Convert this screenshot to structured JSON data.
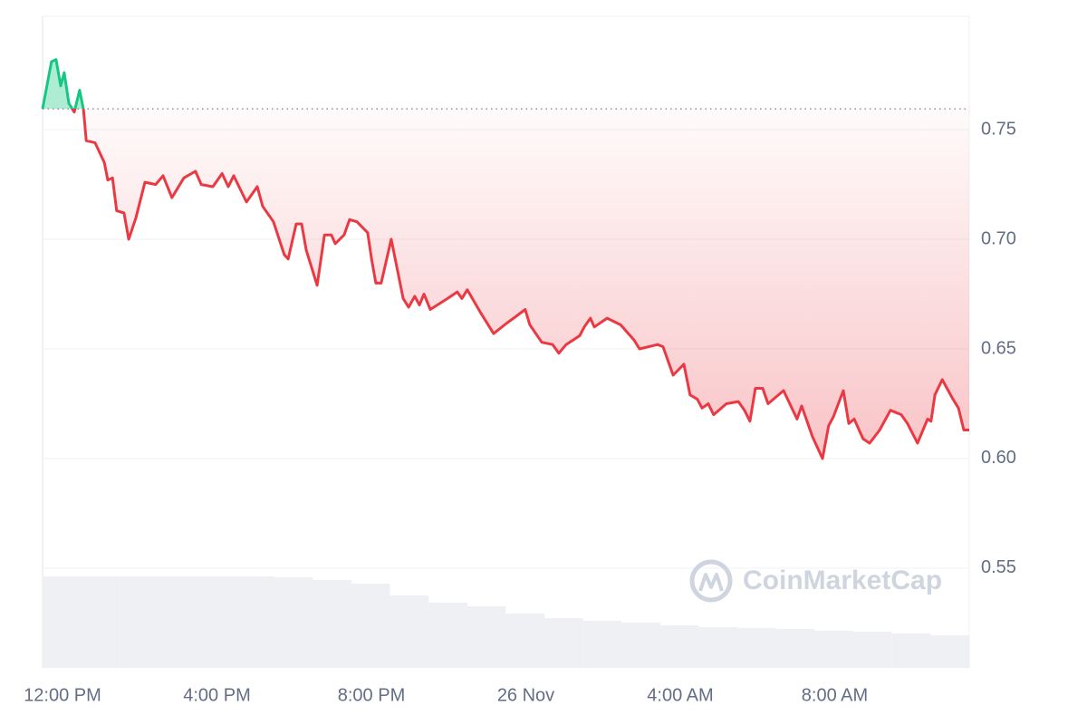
{
  "chart_data": {
    "type": "line",
    "baseline": 0.7595,
    "up_color": "#16c784",
    "down_color": "#ea3943",
    "grid": true,
    "watermark": "CoinMarketCap",
    "xlim": [
      0,
      24
    ],
    "xticks": [
      {
        "value": 0,
        "label": "12:00 PM"
      },
      {
        "value": 4,
        "label": "4:00 PM"
      },
      {
        "value": 8,
        "label": "8:00 PM"
      },
      {
        "value": 12,
        "label": "26 Nov"
      },
      {
        "value": 16,
        "label": "4:00 AM"
      },
      {
        "value": 20,
        "label": "8:00 AM"
      }
    ],
    "ylim": [
      0.5045,
      0.8017
    ],
    "yticks": [
      {
        "value": 0.55,
        "label": "0.55"
      },
      {
        "value": 0.6,
        "label": "0.60"
      },
      {
        "value": 0.65,
        "label": "0.65"
      },
      {
        "value": 0.7,
        "label": "0.70"
      },
      {
        "value": 0.75,
        "label": "0.75"
      }
    ],
    "x": [
      0,
      0.23,
      0.35,
      0.47,
      0.56,
      0.68,
      0.82,
      0.96,
      1.06,
      1.13,
      1.36,
      1.6,
      1.69,
      1.81,
      1.92,
      2.11,
      2.23,
      2.42,
      2.65,
      2.93,
      3.12,
      3.35,
      3.66,
      3.96,
      4.11,
      4.41,
      4.65,
      4.81,
      4.95,
      5.28,
      5.56,
      5.7,
      5.98,
      6.26,
      6.36,
      6.57,
      6.71,
      6.83,
      7.11,
      7.3,
      7.48,
      7.58,
      7.81,
      7.95,
      8.14,
      8.42,
      8.52,
      8.63,
      8.77,
      9.03,
      9.34,
      9.48,
      9.64,
      9.76,
      9.88,
      10.04,
      10.49,
      10.74,
      10.86,
      11.0,
      11.33,
      11.68,
      12.04,
      12.2,
      12.5,
      12.62,
      12.93,
      13.21,
      13.37,
      13.56,
      13.91,
      14.03,
      14.19,
      14.29,
      14.62,
      14.97,
      15.32,
      15.46,
      15.93,
      16.07,
      16.33,
      16.61,
      16.77,
      16.96,
      17.08,
      17.24,
      17.38,
      17.71,
      18.02,
      18.18,
      18.32,
      18.46,
      18.65,
      18.79,
      19.19,
      19.54,
      19.66,
      19.94,
      20.2,
      20.36,
      20.48,
      20.74,
      20.88,
      21.02,
      21.25,
      21.42,
      21.68,
      21.96,
      22.24,
      22.4,
      22.66,
      22.92,
      23.01,
      23.11,
      23.3,
      23.58,
      23.72,
      23.86,
      24.0
    ],
    "values": [
      0.7595,
      0.781,
      0.782,
      0.77,
      0.776,
      0.762,
      0.758,
      0.768,
      0.759,
      0.745,
      0.744,
      0.735,
      0.727,
      0.728,
      0.713,
      0.712,
      0.7,
      0.71,
      0.726,
      0.725,
      0.729,
      0.719,
      0.728,
      0.731,
      0.725,
      0.724,
      0.73,
      0.724,
      0.729,
      0.717,
      0.724,
      0.715,
      0.708,
      0.693,
      0.691,
      0.707,
      0.707,
      0.695,
      0.679,
      0.702,
      0.702,
      0.698,
      0.702,
      0.709,
      0.708,
      0.703,
      0.691,
      0.68,
      0.68,
      0.7,
      0.673,
      0.669,
      0.674,
      0.67,
      0.675,
      0.668,
      0.673,
      0.676,
      0.673,
      0.677,
      0.667,
      0.657,
      0.662,
      0.664,
      0.668,
      0.661,
      0.653,
      0.652,
      0.648,
      0.652,
      0.656,
      0.66,
      0.664,
      0.66,
      0.664,
      0.661,
      0.654,
      0.65,
      0.652,
      0.651,
      0.638,
      0.643,
      0.629,
      0.627,
      0.623,
      0.625,
      0.62,
      0.625,
      0.626,
      0.622,
      0.617,
      0.632,
      0.632,
      0.625,
      0.631,
      0.618,
      0.624,
      0.61,
      0.6,
      0.615,
      0.619,
      0.631,
      0.616,
      0.618,
      0.609,
      0.607,
      0.613,
      0.622,
      0.62,
      0.616,
      0.607,
      0.618,
      0.617,
      0.629,
      0.636,
      0.627,
      0.623,
      0.613,
      0.613
    ],
    "volume": {
      "x": [
        0,
        1,
        2,
        3,
        4,
        5,
        6,
        7,
        8,
        9,
        10,
        11,
        12,
        13,
        14,
        15,
        16,
        17,
        18,
        19,
        20,
        21,
        22,
        23
      ],
      "values": [
        101,
        101,
        101,
        101,
        101,
        101,
        100,
        97,
        93,
        80,
        72,
        68,
        60,
        55,
        52,
        50,
        47,
        45,
        44,
        43,
        41,
        40,
        38,
        36
      ],
      "color": "#eef0f4"
    }
  }
}
